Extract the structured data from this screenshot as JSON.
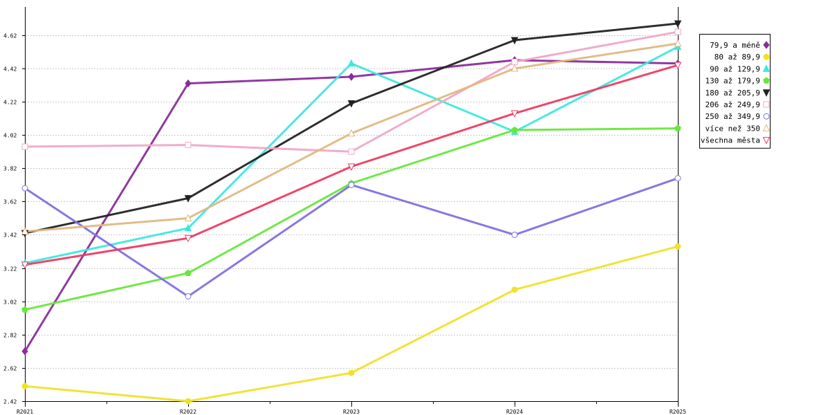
{
  "chart_data": {
    "type": "line",
    "title": "",
    "xlabel": "",
    "ylabel": "",
    "categories": [
      "R2021",
      "R2022",
      "R2023",
      "R2024",
      "R2025"
    ],
    "ylim": [
      2.42,
      4.79
    ],
    "yticks": [
      "2.42",
      "2.62",
      "2.82",
      "3.02",
      "3.22",
      "3.42",
      "3.62",
      "3.82",
      "4.02",
      "4.22",
      "4.42",
      "4.62"
    ],
    "grid": "horizontal-dashed",
    "legend_position": "right",
    "series": [
      {
        "name": "79,9 a méně",
        "color": "#8a2d9a",
        "marker": "diamond-filled",
        "values": [
          2.72,
          4.33,
          4.37,
          4.47,
          4.45
        ]
      },
      {
        "name": "80 až 89,9",
        "color": "#f0e22a",
        "marker": "circle-filled",
        "values": [
          2.51,
          2.42,
          2.59,
          3.09,
          3.35
        ]
      },
      {
        "name": "90 až 129,9",
        "color": "#3ee8e0",
        "marker": "triangle-up-filled",
        "values": [
          3.25,
          3.46,
          4.45,
          4.04,
          4.55
        ]
      },
      {
        "name": "130 až 179,9",
        "color": "#66e83a",
        "marker": "pentagon-filled",
        "values": [
          2.97,
          3.19,
          3.73,
          4.05,
          4.06
        ]
      },
      {
        "name": "180 až 205,9",
        "color": "#222222",
        "marker": "triangle-down-filled",
        "values": [
          3.43,
          3.64,
          4.21,
          4.59,
          4.69
        ]
      },
      {
        "name": "206 až 249,9",
        "color": "#f0a8c8",
        "marker": "square-open",
        "values": [
          3.95,
          3.96,
          3.92,
          4.46,
          4.64
        ]
      },
      {
        "name": "250 až 349,9",
        "color": "#8070e0",
        "marker": "circle-open",
        "values": [
          3.7,
          3.05,
          3.72,
          3.42,
          3.76
        ]
      },
      {
        "name": "více než 350",
        "color": "#e0b880",
        "marker": "triangle-up-open",
        "values": [
          3.44,
          3.52,
          4.03,
          4.42,
          4.57
        ]
      },
      {
        "name": "všechna města",
        "color": "#f03a60",
        "marker": "triangle-down-open",
        "values": [
          3.24,
          3.4,
          3.83,
          4.15,
          4.44
        ]
      }
    ]
  }
}
